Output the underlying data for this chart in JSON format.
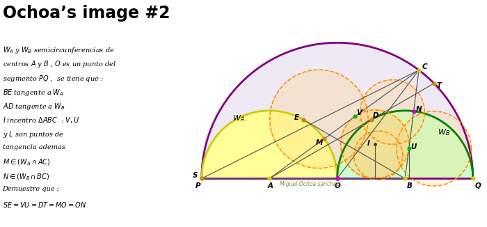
{
  "title": "Ochoa’s image #2",
  "author": "Miguel Ochoa sanchez",
  "description_lines": [
    "$W_A$ y $W_B$ semicircunferencias de",
    "centros $A$ y $B$ , $O$ es un punto del",
    "segmento $PQ$ ,  se tiene que :",
    "$BE$ tangente a $W_A$",
    "$AD$ tangente a $W_B$",
    "$I$ incentro $\\Delta ABC$  : $V,U$",
    "y $L$ son puntos de",
    "tangencia ademas",
    "$M \\in (W_A \\cap AC)$",
    "$N \\in (W_B \\cap BC)$",
    "Demuestre que :",
    "$SE = VU = DT = MO = ON$"
  ],
  "bg_color": "#ffffff",
  "big_semicircle_color": "#800080",
  "big_semicircle_fill": "#efe8f5",
  "wa_color": "#cccc00",
  "wa_fill": "#ffff99",
  "wb_color": "#008000",
  "wb_fill": "#ccffcc",
  "orange_fill": "#ffd580",
  "orange_color": "#ff8c00",
  "line_color": "#555555"
}
